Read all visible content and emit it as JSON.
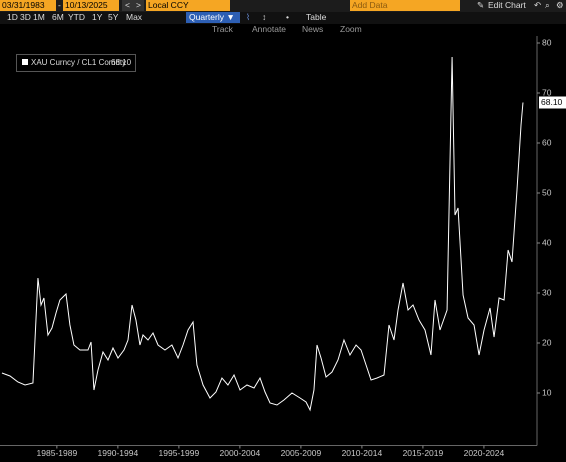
{
  "toolbar": {
    "start_date": "03/31/1983",
    "end_date": "10/13/2025",
    "currency": "Local CCY",
    "add_data": "Add Data",
    "edit_chart": "Edit Chart",
    "periods": [
      "1D",
      "3D",
      "1M",
      "6M",
      "YTD",
      "1Y",
      "5Y",
      "Max"
    ],
    "frequency": "Quarterly",
    "table": "Table",
    "tools": [
      "Track",
      "Annotate",
      "News",
      "Zoom"
    ]
  },
  "chart_data": {
    "type": "line",
    "x": [
      1983.0,
      1983.66,
      1984.31,
      1984.89,
      1985.54,
      1985.95,
      1986.2,
      1986.44,
      1986.77,
      1987.1,
      1987.43,
      1987.75,
      1988.25,
      1988.57,
      1988.9,
      1989.39,
      1990.05,
      1990.3,
      1990.54,
      1990.87,
      1991.28,
      1991.69,
      1992.1,
      1992.51,
      1993.0,
      1993.33,
      1993.66,
      1993.98,
      1994.31,
      1994.56,
      1994.97,
      1995.38,
      1995.79,
      1996.36,
      1996.93,
      1997.43,
      1997.84,
      1998.25,
      1998.66,
      1998.98,
      1999.48,
      2000.05,
      2000.54,
      2001.03,
      2001.52,
      2002.02,
      2002.51,
      2003.08,
      2003.66,
      2004.15,
      2004.56,
      2004.97,
      2005.54,
      2006.11,
      2006.77,
      2007.43,
      2007.92,
      2008.25,
      2008.57,
      2008.82,
      2009.15,
      2009.56,
      2010.05,
      2010.54,
      2011.03,
      2011.52,
      2012.02,
      2012.43,
      2012.84,
      2013.25,
      2013.74,
      2014.31,
      2014.72,
      2015.13,
      2015.46,
      2015.87,
      2016.28,
      2016.69,
      2017.18,
      2017.67,
      2018.16,
      2018.49,
      2018.9,
      2019.48,
      2019.89,
      2020.13,
      2020.38,
      2020.79,
      2021.2,
      2021.69,
      2022.1,
      2022.51,
      2023.0,
      2023.33,
      2023.74,
      2024.15,
      2024.48,
      2024.8,
      2025.21,
      2025.54,
      2025.7
    ],
    "series": [
      {
        "name": "XAU Curncy / CL1 Comdty",
        "color": "#ffffff",
        "values": [
          14,
          13.4,
          12.2,
          11.6,
          12,
          33,
          27.6,
          29,
          21.6,
          23,
          26,
          28.6,
          29.8,
          23.6,
          19.6,
          18.6,
          18.6,
          20.2,
          10.6,
          14.6,
          18.2,
          16.6,
          19,
          17,
          18.6,
          20.6,
          27.6,
          24.6,
          19.6,
          21.6,
          20.6,
          22,
          19.6,
          18.6,
          19.6,
          17,
          19.6,
          22.6,
          24.2,
          15.6,
          11.6,
          9,
          10.2,
          13,
          11.6,
          13.6,
          10.6,
          11.6,
          11,
          13,
          10.2,
          8,
          7.6,
          8.6,
          10,
          9,
          8.2,
          6.6,
          10.6,
          19.6,
          17,
          13.2,
          14.2,
          16.6,
          20.6,
          17.6,
          19.6,
          18.6,
          15.6,
          12.6,
          13,
          13.6,
          23.6,
          20.6,
          26.6,
          32,
          26.6,
          27.6,
          24.6,
          22.6,
          17.6,
          28.6,
          22.6,
          26.6,
          77.2,
          45.6,
          47,
          29.6,
          25,
          23.6,
          17.6,
          22.6,
          27,
          21.2,
          29,
          28.6,
          38.6,
          36.2,
          50.6,
          63.6,
          68.1
        ],
        "value_labels": [
          null,
          null,
          null,
          null,
          null,
          null,
          null,
          null,
          null,
          null,
          null,
          null,
          null,
          null,
          null,
          null,
          null,
          null,
          null,
          null,
          null,
          null,
          null,
          null,
          null,
          null,
          null,
          null,
          null,
          null,
          null,
          null,
          null,
          null,
          null,
          null,
          null,
          null,
          null,
          null,
          null,
          null,
          null,
          null,
          null,
          null,
          null,
          null,
          null,
          null,
          null,
          null,
          null,
          null,
          null,
          null,
          null,
          null,
          null,
          null,
          null,
          null,
          null,
          null,
          null,
          null,
          null,
          null,
          null,
          null,
          null,
          null,
          null,
          null,
          null,
          null,
          null,
          null,
          null,
          null,
          null,
          null,
          null,
          null,
          null,
          null,
          null,
          null,
          null,
          null,
          null,
          null,
          null,
          null,
          null,
          null,
          null,
          null,
          null,
          null,
          "68.10"
        ]
      }
    ],
    "xlim": [
      1982.84,
      2026.85
    ],
    "xticks": [
      {
        "value": 1987.5,
        "label": "1985-1989"
      },
      {
        "value": 1992.5,
        "label": "1990-1994"
      },
      {
        "value": 1997.5,
        "label": "1995-1999"
      },
      {
        "value": 2002.5,
        "label": "2000-2004"
      },
      {
        "value": 2007.5,
        "label": "2005-2009"
      },
      {
        "value": 2012.5,
        "label": "2010-2014"
      },
      {
        "value": 2017.5,
        "label": "2015-2019"
      },
      {
        "value": 2022.5,
        "label": "2020-2024"
      }
    ],
    "ylim": [
      -0.5,
      81.5
    ],
    "yticks": [
      10,
      20,
      30,
      40,
      50,
      60,
      70,
      80
    ],
    "grid": false
  }
}
